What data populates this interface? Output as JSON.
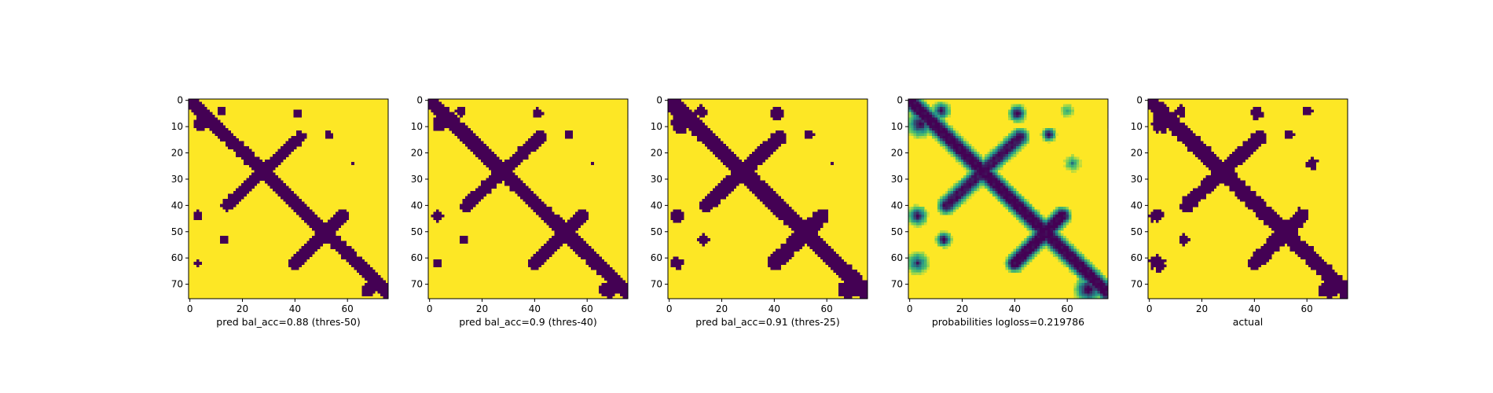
{
  "chart_data": [
    {
      "type": "heatmap",
      "xlabel": "pred bal_acc=0.88 (thres-50)",
      "xticks": [
        0,
        20,
        40,
        60
      ],
      "yticks": [
        0,
        10,
        20,
        30,
        40,
        50,
        60,
        70
      ],
      "xlim": [
        0,
        75
      ],
      "ylim": [
        75,
        0
      ],
      "grid": false,
      "colormap": "viridis",
      "value_range": [
        0,
        1
      ],
      "mask_threshold": 0.5
    },
    {
      "type": "heatmap",
      "xlabel": "pred bal_acc=0.9 (thres-40)",
      "xticks": [
        0,
        20,
        40,
        60
      ],
      "yticks": [
        0,
        10,
        20,
        30,
        40,
        50,
        60,
        70
      ],
      "xlim": [
        0,
        75
      ],
      "ylim": [
        75,
        0
      ],
      "grid": false,
      "colormap": "viridis",
      "value_range": [
        0,
        1
      ],
      "mask_threshold": 0.4
    },
    {
      "type": "heatmap",
      "xlabel": "pred bal_acc=0.91 (thres-25)",
      "xticks": [
        0,
        20,
        40,
        60
      ],
      "yticks": [
        0,
        10,
        20,
        30,
        40,
        50,
        60,
        70
      ],
      "xlim": [
        0,
        75
      ],
      "ylim": [
        75,
        0
      ],
      "grid": false,
      "colormap": "viridis",
      "value_range": [
        0,
        1
      ],
      "mask_threshold": 0.25
    },
    {
      "type": "heatmap",
      "xlabel": "probabilities logloss=0.219786",
      "xticks": [
        0,
        20,
        40,
        60
      ],
      "yticks": [
        0,
        10,
        20,
        30,
        40,
        50,
        60,
        70
      ],
      "xlim": [
        0,
        75
      ],
      "ylim": [
        75,
        0
      ],
      "grid": false,
      "colormap": "viridis",
      "value_range": [
        0,
        1
      ],
      "mask_threshold": null
    },
    {
      "type": "heatmap",
      "xlabel": "actual",
      "xticks": [
        0,
        20,
        40,
        60
      ],
      "yticks": [
        0,
        10,
        20,
        30,
        40,
        50,
        60,
        70
      ],
      "xlim": [
        0,
        75
      ],
      "ylim": [
        75,
        0
      ],
      "grid": false,
      "colormap": "viridis",
      "value_range": [
        0,
        1
      ],
      "mask_threshold": "actual"
    }
  ],
  "colors": {
    "low": "#440154",
    "high": "#fde725",
    "mid": "#21918c",
    "mid_light": "#5ec962"
  }
}
